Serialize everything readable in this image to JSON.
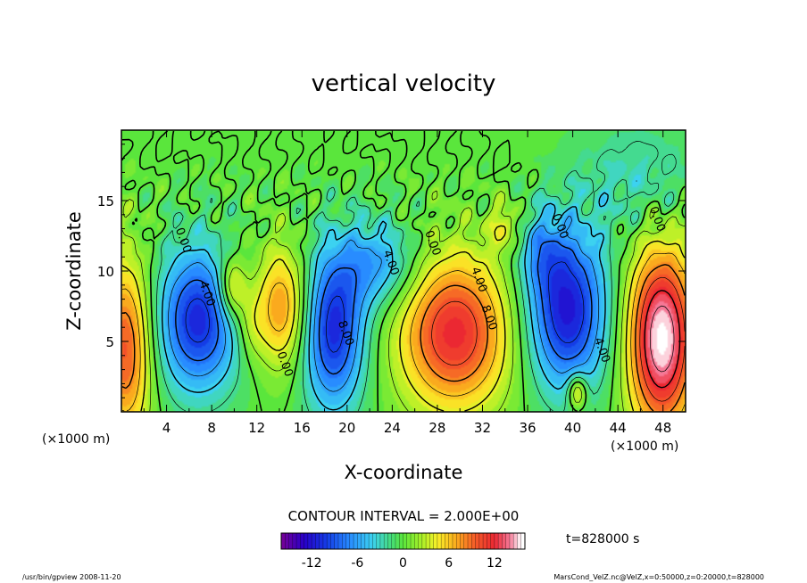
{
  "chart_data": {
    "type": "heatmap",
    "title": "vertical velocity",
    "xlabel": "X-coordinate",
    "ylabel": "Z-coordinate",
    "x_unit": "(×1000 m)",
    "z_unit": "(×1000 m)",
    "xlim": [
      0,
      50
    ],
    "ylim": [
      0,
      20
    ],
    "x_ticks": [
      4,
      8,
      12,
      16,
      20,
      24,
      28,
      32,
      36,
      40,
      44,
      48
    ],
    "y_ticks": [
      5,
      10,
      15
    ],
    "contour_interval_label": "CONTOUR INTERVAL = 2.000E+00",
    "time_label": "t=828000 s",
    "colorbar": {
      "min": -16,
      "max": 16,
      "ticks": [
        -12,
        -6,
        0,
        6,
        12
      ]
    },
    "contour_labels": [
      {
        "text": "0.00",
        "x": 5.2,
        "z": 12.1
      },
      {
        "text": "4.00",
        "x": 7.3,
        "z": 8.3
      },
      {
        "text": "0.00",
        "x": 14.2,
        "z": 3.3
      },
      {
        "text": "8.00",
        "x": 19.6,
        "z": 5.5
      },
      {
        "text": "4.00",
        "x": 23.6,
        "z": 10.5
      },
      {
        "text": "0.00",
        "x": 27.3,
        "z": 11.9
      },
      {
        "text": "4.00",
        "x": 31.4,
        "z": 9.3
      },
      {
        "text": "8.00",
        "x": 32.3,
        "z": 6.6
      },
      {
        "text": "0.00",
        "x": 38.6,
        "z": 13.1
      },
      {
        "text": "4.00",
        "x": 42.3,
        "z": 4.3
      },
      {
        "text": "0.00",
        "x": 47.2,
        "z": 13.6
      }
    ],
    "features": [
      {
        "kind": "updraft",
        "x": 0.4,
        "z": 4.5,
        "peak": 10,
        "sx": 1.6,
        "sz": 4.5
      },
      {
        "kind": "downdraft",
        "x": 6.8,
        "z": 6.5,
        "peak": -11,
        "sx": 2.6,
        "sz": 3.6
      },
      {
        "kind": "updraft",
        "x": 9.8,
        "z": 8.8,
        "peak": 7,
        "sx": 0.9,
        "sz": 1.6
      },
      {
        "kind": "updraft",
        "x": 14.2,
        "z": 7.4,
        "peak": 8,
        "sx": 1.7,
        "sz": 3.0
      },
      {
        "kind": "updraft",
        "x": 11.4,
        "z": 6.2,
        "peak": 3,
        "sx": 0.9,
        "sz": 1.8
      },
      {
        "kind": "downdraft",
        "x": 18.8,
        "z": 5.8,
        "peak": -11,
        "sx": 2.0,
        "sz": 4.0
      },
      {
        "kind": "downdraft",
        "x": 22.8,
        "z": 10.5,
        "peak": -6,
        "sx": 2.5,
        "sz": 2.2
      },
      {
        "kind": "updraft",
        "x": 29.5,
        "z": 5.6,
        "peak": 12,
        "sx": 3.4,
        "sz": 3.8
      },
      {
        "kind": "updraft",
        "x": 34.0,
        "z": 13.2,
        "peak": 4,
        "sx": 1.0,
        "sz": 1.2
      },
      {
        "kind": "downdraft",
        "x": 39.5,
        "z": 7.2,
        "peak": -12,
        "sx": 2.5,
        "sz": 4.0
      },
      {
        "kind": "downdraft",
        "x": 37.2,
        "z": 11.5,
        "peak": -4,
        "sx": 1.5,
        "sz": 2.0
      },
      {
        "kind": "updraft",
        "x": 40.4,
        "z": 1.4,
        "peak": 7,
        "sx": 0.6,
        "sz": 0.9
      },
      {
        "kind": "updraft",
        "x": 47.9,
        "z": 5.2,
        "peak": 16,
        "sx": 2.1,
        "sz": 4.6
      },
      {
        "kind": "downdraft",
        "x": 46.0,
        "z": 16.5,
        "peak": -3,
        "sx": 4.0,
        "sz": 3.0
      }
    ]
  },
  "footer": {
    "left": "/usr/bin/gpview  2008-11-20",
    "right": "MarsCond_VelZ.nc@VelZ,x=0:50000,z=0:20000,t=828000"
  }
}
